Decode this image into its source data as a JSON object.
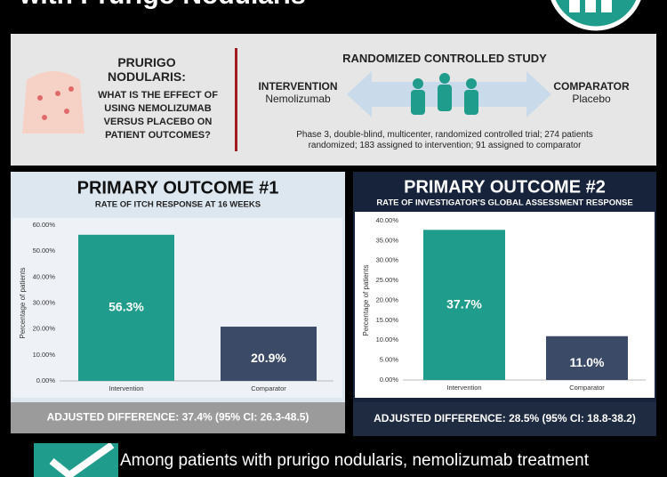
{
  "header": {
    "title": "with Prurigo Nodularis"
  },
  "question": {
    "topic": "PRURIGO NODULARIS:",
    "text": "WHAT IS THE EFFECT OF USING NEMOLIZUMAB VERSUS PLACEBO ON PATIENT OUTCOMES?"
  },
  "study": {
    "title": "RANDOMIZED CONTROLLED STUDY",
    "intervention_label": "INTERVENTION",
    "intervention": "Nemolizumab",
    "comparator_label": "COMPARATOR",
    "comparator": "Placebo",
    "design": "Phase 3, double-blind, multicenter, randomized controlled trial; 274 patients randomized; 183 assigned to intervention; 91 assigned to comparator"
  },
  "chart_data": [
    {
      "type": "bar",
      "title": "PRIMARY OUTCOME #1",
      "subtitle": "RATE OF ITCH RESPONSE AT 16 WEEKS",
      "y_label": "Percentage of patients",
      "categories": [
        "Intervention",
        "Comparator"
      ],
      "values": [
        56.3,
        20.9
      ],
      "value_labels": [
        "56.3%",
        "20.9%"
      ],
      "colors": [
        "#1f9c8b",
        "#3b4a67"
      ],
      "ylim": [
        0,
        60
      ],
      "yticks": [
        {
          "value": 0,
          "label": "0.00%"
        },
        {
          "value": 10,
          "label": "10.00%"
        },
        {
          "value": 20,
          "label": "20.00%"
        },
        {
          "value": 30,
          "label": "30.00%"
        },
        {
          "value": 40,
          "label": "40.00%"
        },
        {
          "value": 50,
          "label": "50.00%"
        },
        {
          "value": 60,
          "label": "60.00%"
        }
      ],
      "grid": false,
      "footer": "ADJUSTED DIFFERENCE: 37.4% (95% CI: 26.3-48.5)"
    },
    {
      "type": "bar",
      "title": "PRIMARY OUTCOME #2",
      "subtitle": "RATE OF INVESTIGATOR'S GLOBAL ASSESSMENT RESPONSE",
      "y_label": "Percentage of patients",
      "categories": [
        "Intervention",
        "Comparator"
      ],
      "values": [
        37.7,
        11.0
      ],
      "value_labels": [
        "37.7%",
        "11.0%"
      ],
      "colors": [
        "#1f9c8b",
        "#3b4a67"
      ],
      "ylim": [
        0,
        40
      ],
      "yticks": [
        {
          "value": 0,
          "label": "0.00%"
        },
        {
          "value": 5,
          "label": "5.00%"
        },
        {
          "value": 10,
          "label": "10.00%"
        },
        {
          "value": 15,
          "label": "15.00%"
        },
        {
          "value": 20,
          "label": "20.00%"
        },
        {
          "value": 25,
          "label": "25.00%"
        },
        {
          "value": 30,
          "label": "30.00%"
        },
        {
          "value": 35,
          "label": "35.00%"
        },
        {
          "value": 40,
          "label": "40.00%"
        }
      ],
      "grid": false,
      "footer": "ADJUSTED DIFFERENCE: 28.5% (95% CI: 18.8-38.2)"
    }
  ],
  "conclusion": "Among patients with prurigo nodularis, nemolizumab treatment"
}
